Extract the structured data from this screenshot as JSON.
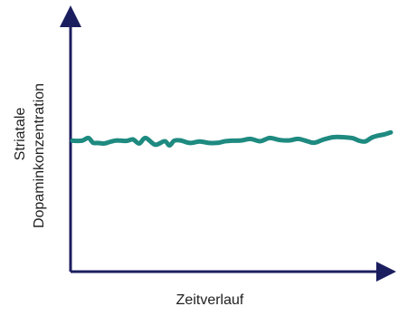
{
  "colors": {
    "axis": "#1b1e5e",
    "series": "#1e8a80",
    "text": "#1f1f1f"
  },
  "chart_data": {
    "type": "line",
    "title": "",
    "xlabel": "Zeitverlauf",
    "ylabel_lines": [
      "Striatale",
      "Dopaminkonzentration"
    ],
    "xlim": [
      0,
      100
    ],
    "ylim": [
      0,
      100
    ],
    "grid": false,
    "legend": "none",
    "series": [
      {
        "x": [
          0,
          3,
          5,
          6.5,
          8,
          10,
          12,
          14,
          17,
          19,
          21,
          23,
          26,
          29,
          30.5,
          32,
          34,
          37,
          40,
          43,
          46,
          48,
          50,
          53,
          56,
          59,
          62,
          65,
          68,
          71,
          74,
          76,
          79,
          82,
          85,
          88,
          90,
          92,
          94,
          96,
          98,
          100
        ],
        "y": [
          51.3,
          51.3,
          52.4,
          50.5,
          50.4,
          50.2,
          50.9,
          51.4,
          51.2,
          51.8,
          50.2,
          52.4,
          49.7,
          51.1,
          49.4,
          51.3,
          51.4,
          50.4,
          51.0,
          50.4,
          50.5,
          51.1,
          51.3,
          51.4,
          52.0,
          51.1,
          52.4,
          51.6,
          51.4,
          52.0,
          51.0,
          50.5,
          51.8,
          52.7,
          52.7,
          52.3,
          51.3,
          51.0,
          52.5,
          53.3,
          53.8,
          54.6
        ]
      }
    ]
  }
}
